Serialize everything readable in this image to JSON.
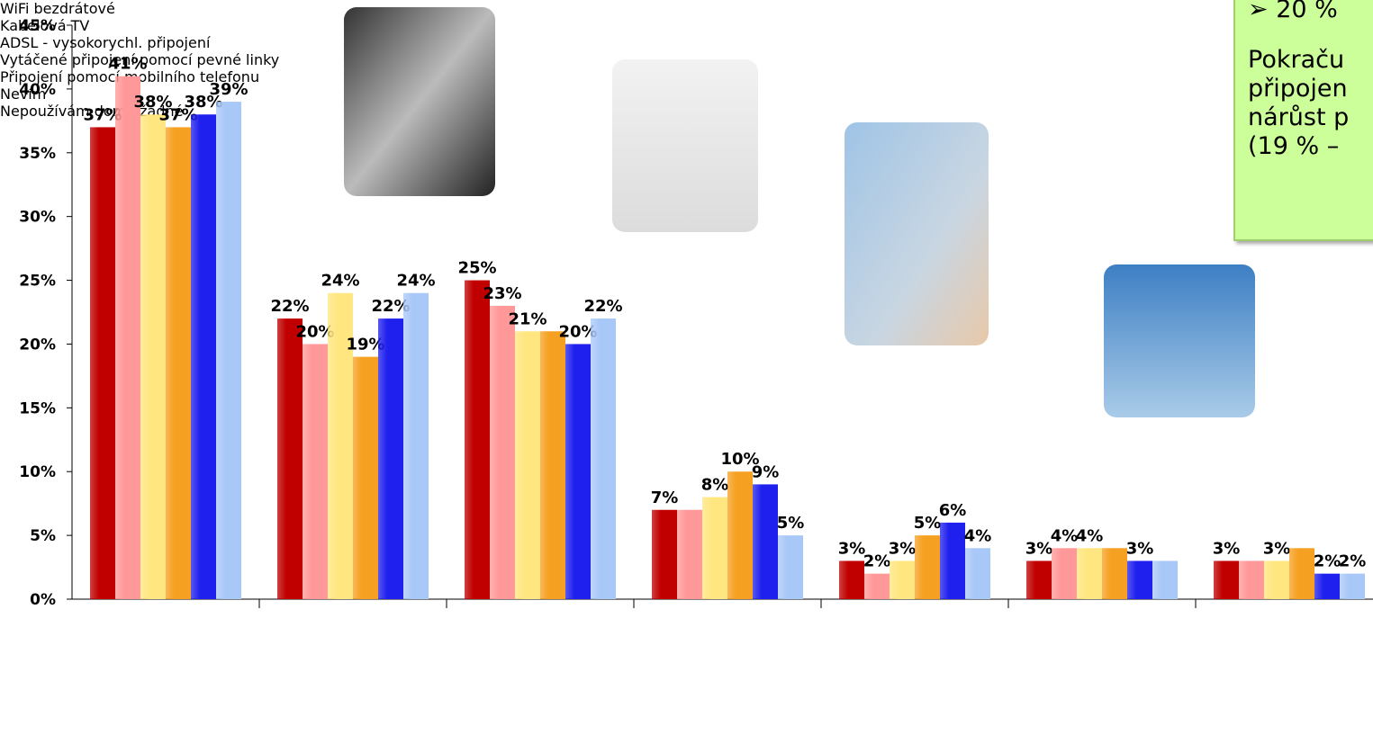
{
  "chart_data": {
    "type": "bar",
    "categories": [
      "WiFi bezdrátové",
      "Kabelová TV",
      "ADSL - vysokorychl. připojení",
      "Vytáčené připojení pomocí pevné linky",
      "Připojení pomocí mobilního telefonu",
      "Nevím",
      "Nepoužívám doma žádné"
    ],
    "series": [
      {
        "color": "#c00000",
        "values": [
          37,
          22,
          25,
          7,
          3,
          3,
          3
        ],
        "value_labels": [
          "37%",
          "22%",
          "25%",
          "7%",
          "3%",
          "3%",
          "3%"
        ]
      },
      {
        "color": "#ff9999",
        "values": [
          41,
          20,
          23,
          7,
          2,
          4,
          3
        ],
        "value_labels": [
          "41%",
          "20%",
          "23%",
          null,
          "2%",
          "4%",
          null
        ]
      },
      {
        "color": "#ffe680",
        "values": [
          38,
          24,
          21,
          8,
          3,
          4,
          3
        ],
        "value_labels": [
          "38%",
          "24%",
          "21%",
          "8%",
          "3%",
          "4%",
          "3%"
        ]
      },
      {
        "color": "#f5a020",
        "values": [
          37,
          19,
          21,
          10,
          5,
          4,
          4
        ],
        "value_labels": [
          "37%",
          "19%",
          null,
          "10%",
          "5%",
          null,
          null
        ]
      },
      {
        "color": "#2020ee",
        "values": [
          38,
          22,
          20,
          9,
          6,
          3,
          2
        ],
        "value_labels": [
          "38%",
          "22%",
          "20%",
          "9%",
          "6%",
          "3%",
          "2%"
        ]
      },
      {
        "color": "#a8c8f8",
        "values": [
          39,
          24,
          22,
          5,
          4,
          3,
          2
        ],
        "value_labels": [
          "39%",
          "24%",
          "22%",
          "5%",
          "4%",
          null,
          "2%"
        ]
      }
    ],
    "ylim": [
      0,
      45
    ],
    "yticks": [
      {
        "value": 0,
        "label": "0%"
      },
      {
        "value": 5,
        "label": "5%"
      },
      {
        "value": 10,
        "label": "10%"
      },
      {
        "value": 15,
        "label": "15%"
      },
      {
        "value": 20,
        "label": "20%"
      },
      {
        "value": 25,
        "label": "25%"
      },
      {
        "value": 30,
        "label": "30%"
      },
      {
        "value": 35,
        "label": "35%"
      },
      {
        "value": 40,
        "label": "40%"
      },
      {
        "value": 45,
        "label": "45%"
      }
    ],
    "grid": false,
    "annotations": [
      "➢ 20 %",
      "Pokraču",
      "připojen",
      "nárůst p",
      "(19 % –"
    ]
  }
}
